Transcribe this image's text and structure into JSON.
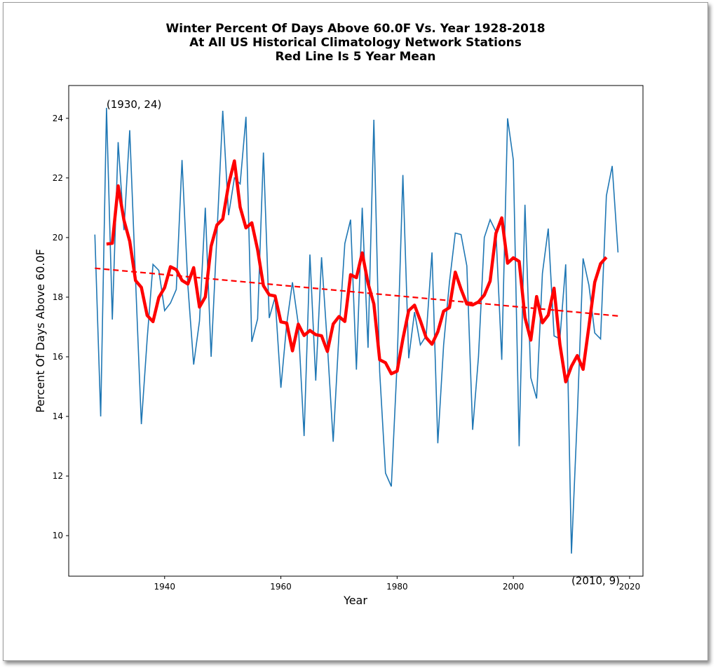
{
  "chart_data": {
    "type": "line",
    "title": [
      "Winter Percent Of Days Above 60.0F Vs. Year 1928-2018",
      "At All US Historical Climatology Network Stations",
      "Red Line Is 5 Year Mean"
    ],
    "xlabel": "Year",
    "ylabel": "Percent Of Days Above 60.0F",
    "xlim": [
      1923.5,
      2022.3
    ],
    "ylim": [
      8.64,
      25.1
    ],
    "xticks": [
      1940,
      1960,
      1980,
      2000,
      2020
    ],
    "yticks": [
      10,
      12,
      14,
      16,
      18,
      20,
      22,
      24
    ],
    "grid": false,
    "series": [
      {
        "color": "#1f77b4",
        "x": [
          1928,
          1929,
          1930,
          1931,
          1932,
          1933,
          1934,
          1935,
          1936,
          1937,
          1938,
          1939,
          1940,
          1941,
          1942,
          1943,
          1944,
          1945,
          1946,
          1947,
          1948,
          1949,
          1950,
          1951,
          1952,
          1953,
          1954,
          1955,
          1956,
          1957,
          1958,
          1959,
          1960,
          1961,
          1962,
          1963,
          1964,
          1965,
          1966,
          1967,
          1968,
          1969,
          1970,
          1971,
          1972,
          1973,
          1974,
          1975,
          1976,
          1977,
          1978,
          1979,
          1980,
          1981,
          1982,
          1983,
          1984,
          1985,
          1986,
          1987,
          1988,
          1989,
          1990,
          1991,
          1992,
          1993,
          1994,
          1995,
          1996,
          1997,
          1998,
          1999,
          2000,
          2001,
          2002,
          2003,
          2004,
          2005,
          2006,
          2007,
          2008,
          2009,
          2010,
          2011,
          2012,
          2013,
          2014,
          2015,
          2016,
          2017,
          2018
        ],
        "y": [
          20.1,
          14.0,
          24.35,
          17.25,
          23.2,
          20.25,
          23.6,
          18.6,
          13.74,
          16.6,
          19.1,
          18.9,
          17.55,
          17.8,
          18.26,
          22.6,
          18.4,
          15.74,
          17.2,
          21.0,
          16.0,
          20.1,
          24.25,
          20.75,
          22.0,
          21.8,
          24.05,
          16.5,
          17.27,
          22.85,
          17.3,
          18.0,
          14.96,
          17.1,
          18.5,
          17.1,
          13.34,
          19.43,
          15.2,
          19.34,
          16.4,
          13.15,
          16.8,
          19.8,
          20.6,
          15.57,
          21.0,
          16.3,
          23.95,
          15.5,
          12.1,
          11.65,
          15.8,
          22.1,
          15.95,
          17.5,
          16.4,
          16.7,
          19.5,
          13.1,
          16.4,
          18.5,
          20.15,
          20.1,
          19.05,
          13.55,
          16.0,
          20.0,
          20.6,
          20.2,
          15.9,
          24.0,
          22.6,
          13.0,
          21.1,
          15.3,
          14.6,
          18.8,
          20.3,
          16.7,
          16.6,
          19.1,
          9.4,
          14.0,
          19.3,
          18.4,
          16.8,
          16.6,
          21.4,
          22.4,
          19.5
        ]
      }
    ],
    "rolling_mean": {
      "window": 5,
      "color": "#ff0000"
    },
    "trend": {
      "color": "#ff0000",
      "style": "dashed",
      "start": [
        1928,
        18.97
      ],
      "end": [
        2018,
        17.37
      ]
    },
    "annotations": [
      {
        "text": "(1930, 24)",
        "x": 1930,
        "y": 24
      },
      {
        "text": "(2010, 9)",
        "x": 2010,
        "y": 9
      }
    ]
  }
}
